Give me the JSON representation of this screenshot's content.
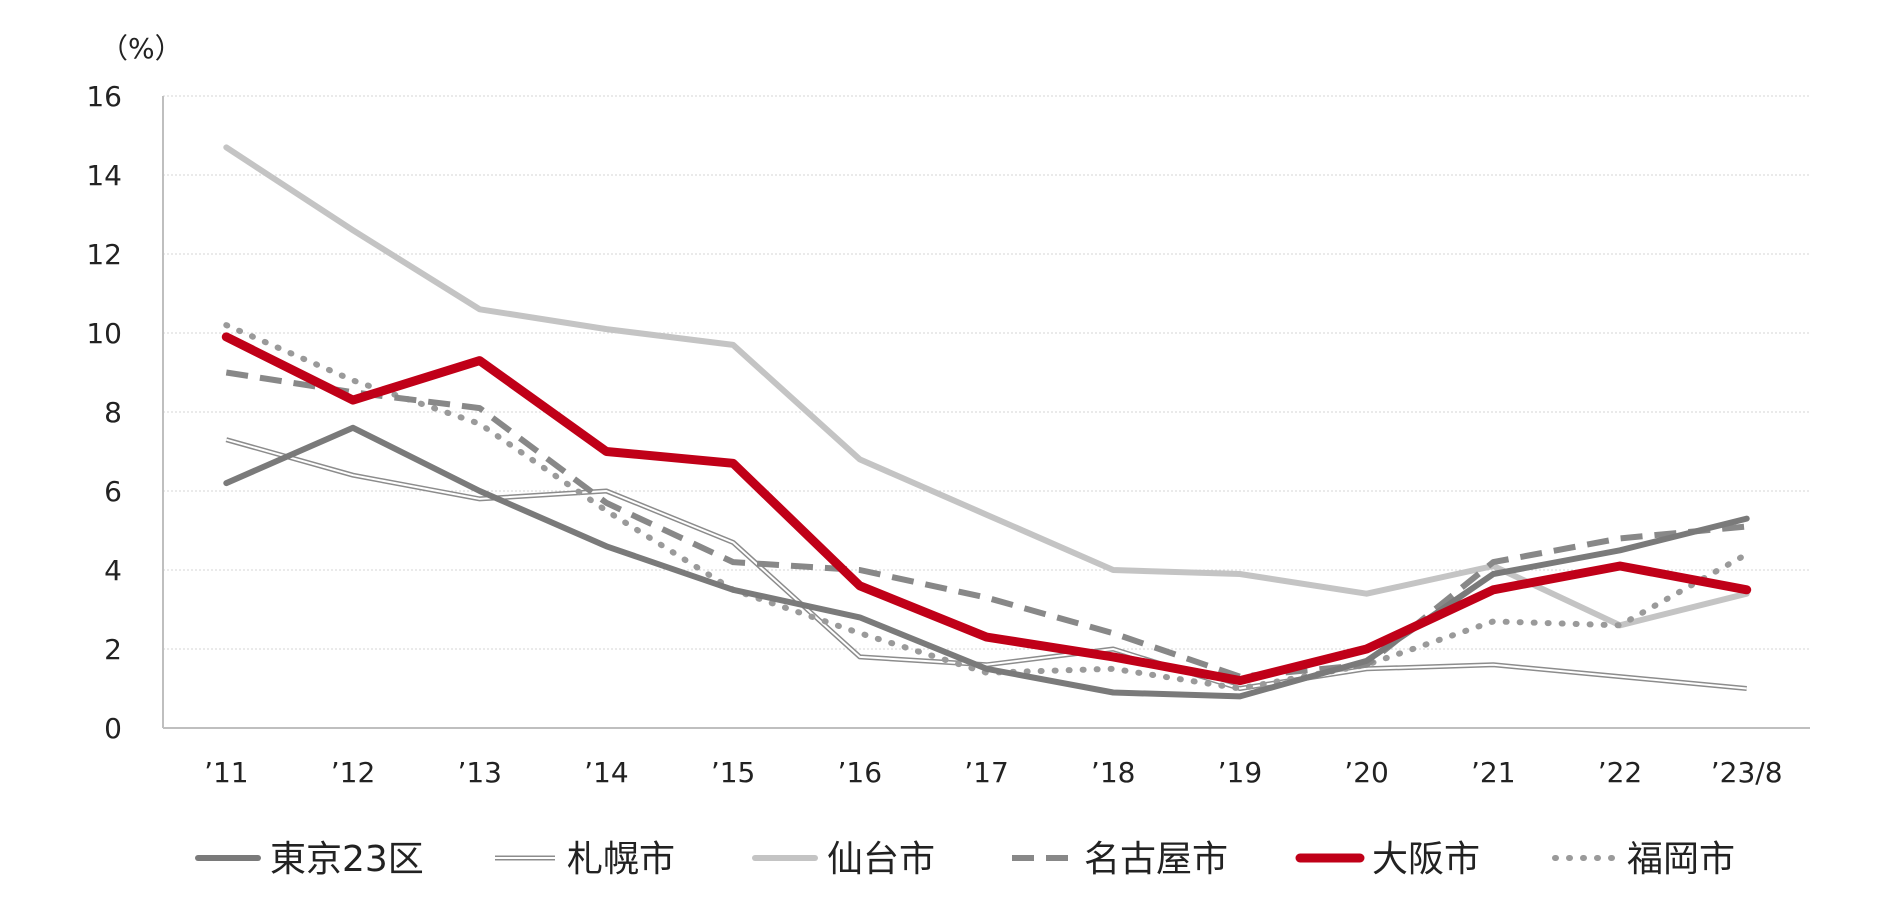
{
  "chart_data": {
    "type": "line",
    "title": "",
    "xlabel": "",
    "ylabel": "（%）",
    "categories": [
      "’11",
      "’12",
      "’13",
      "’14",
      "’15",
      "’16",
      "’17",
      "’18",
      "’19",
      "’20",
      "’21",
      "’22",
      "’23/8"
    ],
    "ylim": [
      0,
      16
    ],
    "yticks": [
      0,
      2,
      4,
      6,
      8,
      10,
      12,
      14,
      16
    ],
    "grid": true,
    "legend_position": "bottom",
    "series": [
      {
        "name": "東京23区",
        "color": "#7a7a7a",
        "style": "solid-thick",
        "values": [
          6.2,
          7.6,
          6.0,
          4.6,
          3.5,
          2.8,
          1.5,
          0.9,
          0.8,
          1.7,
          3.9,
          4.5,
          5.3
        ]
      },
      {
        "name": "札幌市",
        "color": "#8c8c8c",
        "style": "double",
        "values": [
          7.3,
          6.4,
          5.8,
          6.0,
          4.7,
          1.8,
          1.6,
          2.0,
          1.0,
          1.5,
          1.6,
          1.3,
          1.0
        ]
      },
      {
        "name": "仙台市",
        "color": "#c4c4c4",
        "style": "solid",
        "values": [
          14.7,
          12.6,
          10.6,
          10.1,
          9.7,
          6.8,
          5.4,
          4.0,
          3.9,
          3.4,
          4.1,
          2.6,
          3.4
        ]
      },
      {
        "name": "名古屋市",
        "color": "#888888",
        "style": "dashed",
        "values": [
          9.0,
          8.5,
          8.1,
          5.7,
          4.2,
          4.0,
          3.3,
          2.4,
          1.3,
          1.6,
          4.2,
          4.8,
          5.1
        ]
      },
      {
        "name": "大阪市",
        "color": "#c00018",
        "style": "solid-bold",
        "values": [
          9.9,
          8.3,
          9.3,
          7.0,
          6.7,
          3.6,
          2.3,
          1.8,
          1.2,
          2.0,
          3.5,
          4.1,
          3.5
        ]
      },
      {
        "name": "福岡市",
        "color": "#9a9a9a",
        "style": "dotted",
        "values": [
          10.2,
          8.8,
          7.7,
          5.5,
          3.5,
          2.4,
          1.4,
          1.5,
          1.0,
          1.6,
          2.7,
          2.6,
          4.4
        ]
      }
    ]
  }
}
